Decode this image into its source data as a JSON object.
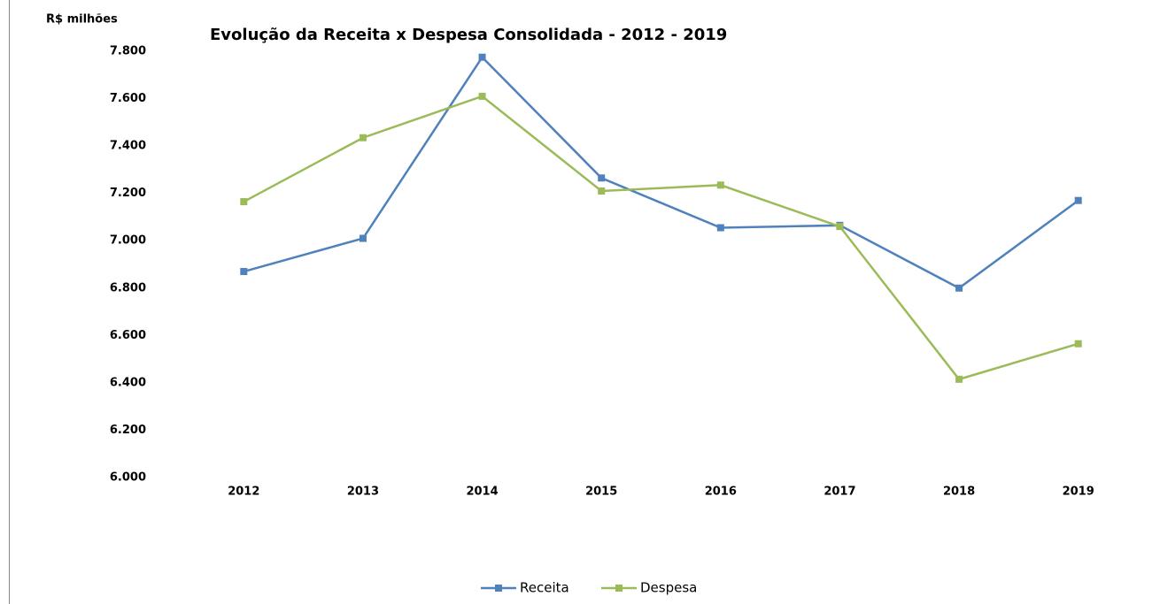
{
  "chart_data": {
    "type": "line",
    "title": "Evolução da Receita x  Despesa Consolidada - 2012 - 2019",
    "y_label": "R$ milhões",
    "categories": [
      "2012",
      "2013",
      "2014",
      "2015",
      "2016",
      "2017",
      "2018",
      "2019"
    ],
    "series": [
      {
        "name": "Receita",
        "color": "#4f81bd",
        "values": [
          6870,
          7010,
          7775,
          7265,
          7055,
          7065,
          6800,
          7170
        ]
      },
      {
        "name": "Despesa",
        "color": "#9bbb59",
        "values": [
          7165,
          7435,
          7610,
          7210,
          7235,
          7060,
          6415,
          6565
        ]
      }
    ],
    "ylim": [
      6000,
      7800
    ],
    "yticks": [
      {
        "value": 6000,
        "label": "6.000"
      },
      {
        "value": 6200,
        "label": "6.200"
      },
      {
        "value": 6400,
        "label": "6.400"
      },
      {
        "value": 6600,
        "label": "6.600"
      },
      {
        "value": 6800,
        "label": "6.800"
      },
      {
        "value": 7000,
        "label": "7.000"
      },
      {
        "value": 7200,
        "label": "7.200"
      },
      {
        "value": 7400,
        "label": "7.400"
      },
      {
        "value": 7600,
        "label": "7.600"
      },
      {
        "value": 7800,
        "label": "7.800"
      }
    ],
    "legend": "bottom",
    "grid": false
  }
}
